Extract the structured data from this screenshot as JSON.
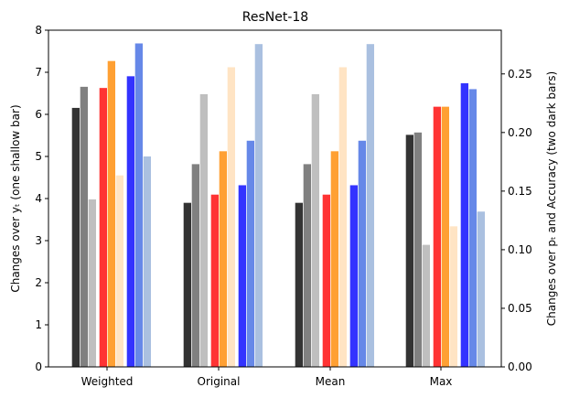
{
  "chart_data": {
    "type": "bar",
    "title": "ResNet-18",
    "xlabel": "",
    "ylabel_left": "Changes over yₜ (one shallow bar)",
    "ylabel_right": "Changes over pₜ and Accuracy (two dark bars)",
    "categories": [
      "Weighted",
      "Original",
      "Mean",
      "Max"
    ],
    "ylim_left": [
      0,
      8
    ],
    "ylim_right": [
      0,
      0.2873
    ],
    "yticks_left": [
      "0",
      "1",
      "2",
      "3",
      "4",
      "5",
      "6",
      "7",
      "8"
    ],
    "yticks_right": [
      "0.00",
      "0.05",
      "0.10",
      "0.15",
      "0.20",
      "0.25"
    ],
    "grid": false,
    "legend": "none",
    "series": [
      {
        "axis": "right",
        "color": "#333333",
        "values": [
          0.221,
          0.14,
          0.14,
          0.198
        ]
      },
      {
        "axis": "right",
        "color": "#808080",
        "values": [
          0.239,
          0.173,
          0.173,
          0.2
        ]
      },
      {
        "axis": "left",
        "color": "#bfbfbf",
        "values": [
          3.98,
          6.48,
          6.48,
          2.9
        ]
      },
      {
        "axis": "right",
        "color": "#ff3333",
        "values": [
          0.238,
          0.147,
          0.147,
          0.222
        ]
      },
      {
        "axis": "right",
        "color": "#ffa033",
        "values": [
          0.261,
          0.184,
          0.184,
          0.222
        ]
      },
      {
        "axis": "left",
        "color": "#ffe4c4",
        "values": [
          4.55,
          7.12,
          7.12,
          3.34
        ]
      },
      {
        "axis": "right",
        "color": "#3333ff",
        "values": [
          0.248,
          0.155,
          0.155,
          0.242
        ]
      },
      {
        "axis": "right",
        "color": "#6688e8",
        "values": [
          0.276,
          0.193,
          0.193,
          0.237
        ]
      },
      {
        "axis": "left",
        "color": "#aac0e0",
        "values": [
          5.0,
          7.67,
          7.67,
          3.69
        ]
      }
    ]
  }
}
